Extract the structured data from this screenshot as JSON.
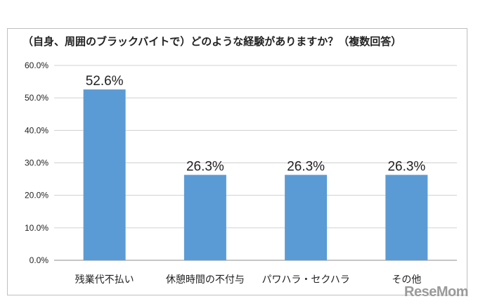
{
  "chart_data": {
    "type": "bar",
    "title": "（自身、周囲のブラックバイトで）どのような経験がありますか？（複数回答）",
    "categories": [
      "残業代不払い",
      "休憩時間の不付与",
      "パワハラ・セクハラ",
      "その他"
    ],
    "values": [
      52.6,
      26.3,
      26.3,
      26.3
    ],
    "value_labels": [
      "52.6%",
      "26.3%",
      "26.3%",
      "26.3%"
    ],
    "ylim": [
      0,
      60
    ],
    "y_ticks": [
      "0.0%",
      "10.0%",
      "20.0%",
      "30.0%",
      "40.0%",
      "50.0%",
      "60.0%"
    ],
    "xlabel": "",
    "ylabel": "",
    "grid": true,
    "bar_color": "#5B9BD5"
  },
  "watermark": "ReseMom"
}
